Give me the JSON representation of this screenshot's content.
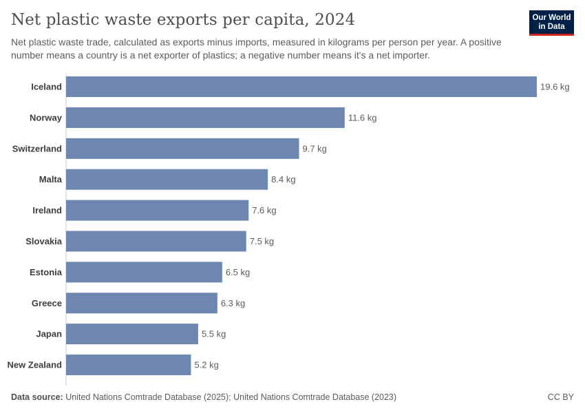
{
  "header": {
    "title": "Net plastic waste exports per capita, 2024",
    "subtitle": "Net plastic waste trade, calculated as exports minus imports, measured in kilograms per person per year. A positive number means a country is a net exporter of plastics; a negative number means it's a net importer."
  },
  "logo": {
    "line1": "Our World",
    "line2": "in Data"
  },
  "footer": {
    "source_label": "Data source:",
    "source_text": "United Nations Comtrade Database (2025); United Nations Comtrade Database (2023)",
    "license": "CC BY"
  },
  "colors": {
    "bar": "#6d87b0",
    "label": "#3d3d3d",
    "value": "#5b5b5b",
    "axis": "#cccccc"
  },
  "chart_data": {
    "type": "bar",
    "orientation": "horizontal",
    "title": "Net plastic waste exports per capita, 2024",
    "unit": "kg",
    "categories": [
      "Iceland",
      "Norway",
      "Switzerland",
      "Malta",
      "Ireland",
      "Slovakia",
      "Estonia",
      "Greece",
      "Japan",
      "New Zealand"
    ],
    "values": [
      19.6,
      11.6,
      9.7,
      8.4,
      7.6,
      7.5,
      6.5,
      6.3,
      5.5,
      5.2
    ],
    "value_labels": [
      "19.6 kg",
      "11.6 kg",
      "9.7 kg",
      "8.4 kg",
      "7.6 kg",
      "7.5 kg",
      "6.5 kg",
      "6.3 kg",
      "5.5 kg",
      "5.2 kg"
    ],
    "xlim": [
      0,
      19.6
    ],
    "grid": false,
    "legend": "none"
  }
}
